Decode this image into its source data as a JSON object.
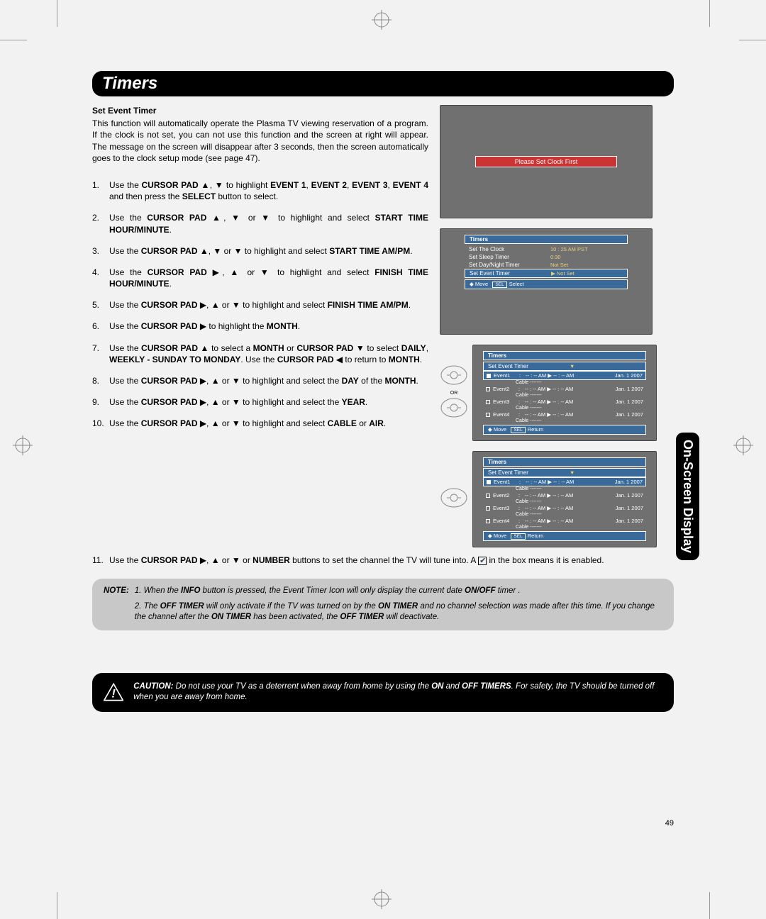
{
  "title": "Timers",
  "sidetab": "On-Screen Display",
  "pagenum": "49",
  "section_head": "Set Event Timer",
  "intro": "This function will automatically operate the Plasma TV viewing reservation of a program. If the clock is not set, you can not use this function and the screen at right will appear. The message on the screen will disappear after 3 seconds, then the screen automatically goes to the clock setup mode (see page 47).",
  "steps": [
    {
      "n": "1.",
      "t": "Use the <b>CURSOR PAD</b> ▲, ▼ to highlight <b>EVENT 1</b>, <b>EVENT 2</b>, <b>EVENT 3</b>, <b>EVENT 4</b> and then press the <b>SELECT</b> button to select."
    },
    {
      "n": "2.",
      "t": "Use the <b>CURSOR PAD</b> ▲, ▼ or ▼ to highlight and select <b>START TIME HOUR/MINUTE</b>."
    },
    {
      "n": "3.",
      "t": "Use the <b>CURSOR PAD</b> ▲, ▼ or ▼ to highlight and select <b>START TIME AM/PM</b>."
    },
    {
      "n": "4.",
      "t": "Use the <b>CURSOR PAD</b> ▶, ▲ or ▼ to highlight and select <b>FINISH TIME HOUR/MINUTE</b>."
    },
    {
      "n": "5.",
      "t": "Use the <b>CURSOR PAD</b> ▶, ▲ or ▼ to highlight and select <b>FINISH TIME AM/PM</b>."
    },
    {
      "n": "6.",
      "t": "Use the <b>CURSOR PAD</b> ▶ to highlight the <b>MONTH</b>."
    },
    {
      "n": "7.",
      "t": "Use the <b>CURSOR PAD</b> ▲ to select a <b>MONTH</b> or <b>CURSOR PAD</b> ▼ to select <b>DAILY</b>, <b>WEEKLY - SUNDAY TO MONDAY</b>. Use the <b>CURSOR PAD</b> ◀ to return to <b>MONTH</b>."
    },
    {
      "n": "8.",
      "t": "Use the <b>CURSOR PAD</b> ▶, ▲ or ▼ to highlight and select the <b>DAY</b> of the <b>MONTH</b>."
    },
    {
      "n": "9.",
      "t": "Use the <b>CURSOR PAD</b> ▶, ▲ or ▼ to highlight and select the <b>YEAR</b>."
    },
    {
      "n": "10.",
      "t": "Use the <b>CURSOR PAD</b> ▶, ▲ or ▼ to highlight and select <b>CABLE</b> or <b>AIR</b>."
    }
  ],
  "step11": {
    "n": "11.",
    "pre": "Use the <b>CURSOR PAD</b> ▶, ▲ or ▼ or <b>NUMBER</b> buttons to set the channel the TV will tune into. A ",
    "post": " in the box means it is enabled."
  },
  "note_label": "NOTE:",
  "note1": "1.  When the <b>INFO</b> button is pressed, the Event Timer Icon will only display the current date <b>ON/OFF</b> timer .",
  "note2": "2.  The <b>OFF TIMER</b> will only activate if the TV was turned on by the <b>ON TIMER</b> and no channel selection was made after this time. If you change the channel after the <b>ON TIMER</b> has been activated, the <b>OFF TIMER</b> will deactivate.",
  "caution_label": "CAUTION:",
  "caution": "Do not use your TV as a deterrent when away from home by using the <b>ON</b> and <b>OFF TIMERS</b>. For safety, the TV should be turned off when you are away from home.",
  "osd1": {
    "msg": "Please Set Clock First"
  },
  "osd2": {
    "title": "Timers",
    "rows": [
      {
        "l": "Set The Clock",
        "r": "10 : 25 AM PST"
      },
      {
        "l": "Set Sleep Timer",
        "r": "0:30"
      },
      {
        "l": "Set Day/Night Timer",
        "r": "Not Set"
      },
      {
        "l": "Set Event Timer",
        "r": "▶   Not Set"
      }
    ],
    "foot_move": "Move",
    "foot_sel": "Select"
  },
  "osd3": {
    "title": "Timers",
    "sub": "Set Event Timer",
    "events": [
      {
        "lbl": "Event1",
        "active": true
      },
      {
        "lbl": "Event2",
        "active": false
      },
      {
        "lbl": "Event3",
        "active": false
      },
      {
        "lbl": "Event4",
        "active": false
      }
    ],
    "time_str": "-- : -- AM  ▶  -- : -- AM",
    "date_str": "Jan. 1 2007",
    "cable": "Cable    -------",
    "foot_move": "Move",
    "foot_ret": "Return"
  },
  "or_label": "OR",
  "colors": {
    "page_bg": "#f2f2f2",
    "blue": "#3a6a9a",
    "red": "#cc3333",
    "tv_bg": "#707070",
    "yellow": "#e8d080"
  }
}
